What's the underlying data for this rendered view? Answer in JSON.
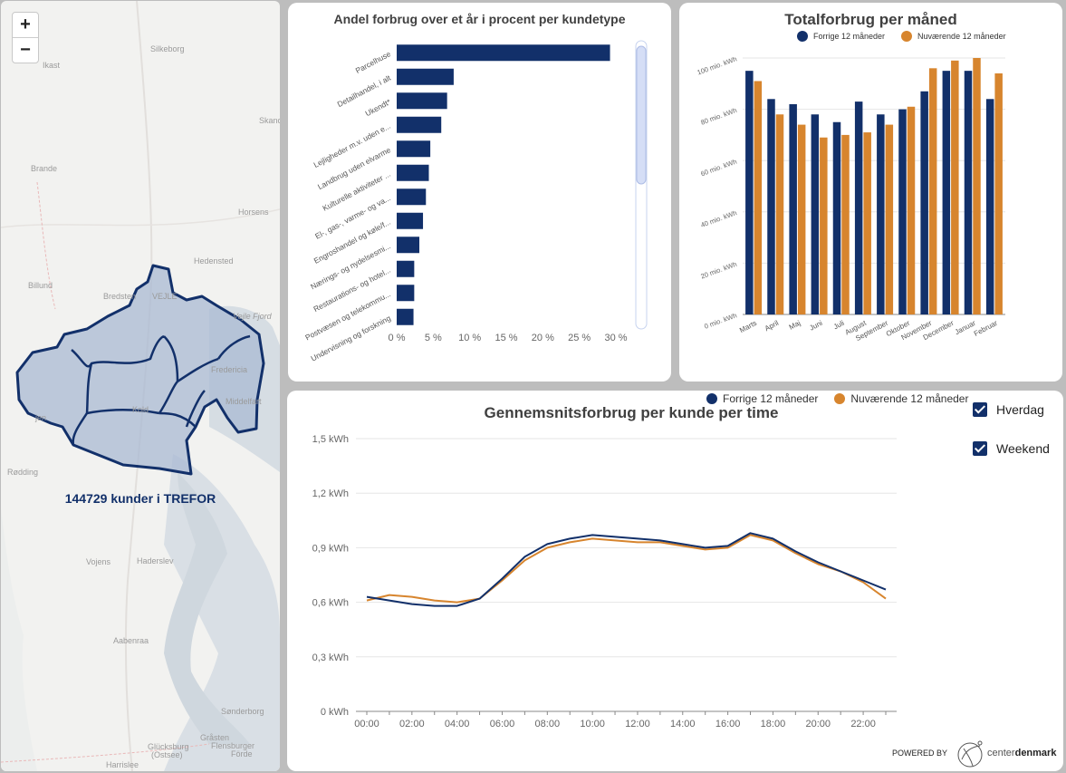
{
  "map": {
    "zoom_in": "+",
    "zoom_out": "−",
    "customers_text": "144729 kunder i TREFOR",
    "places": [
      "Silkeborg",
      "Ikast",
      "Skanderborg",
      "Brande",
      "Horsens",
      "Hedensted",
      "Billund",
      "Bredsten",
      "Vejle",
      "Vejle Fjord",
      "Fredericia",
      "Middelfart",
      "Kolding",
      "Vejen",
      "Rødding",
      "Vojens",
      "Haderslev",
      "Aabenraa",
      "Sønderborg",
      "Gråsten",
      "Flensburger Förde",
      "Glücksburg (Ostsee)",
      "Harrislee"
    ],
    "place_labels": {
      "silkeborg": "Silkeborg",
      "ikast": "Ikast",
      "skanderborg": "Skanc",
      "brande": "Brande",
      "horsens": "Horsens",
      "hedensted": "Hedensted",
      "billund": "Billund",
      "bredsten": "Bredsten",
      "vejle": "VEJLE",
      "vejle_fjord": "Vejle Fjord",
      "fredericia": "Fredericia",
      "middelfart": "Middelfart",
      "kolding": "Kold",
      "vejen": "jen",
      "rodding": "Rødding",
      "vojens": "Vojens",
      "haderslev": "Haderslev",
      "aabenraa": "Aabenraa",
      "sonderborg": "Sønderborg",
      "grasten": "Gråsten",
      "flensburger": "Flensburger",
      "forde": "Förde",
      "glucksburg": "Glücksburg",
      "ostsee": "(Ostsee)",
      "harrislee": "Harrislee"
    }
  },
  "bar_chart": {
    "title": "Andel forbrug over et år i procent per kundetype",
    "chart_data": {
      "type": "bar",
      "orientation": "horizontal",
      "title": "Andel forbrug over et år i procent per kundetype",
      "categories": [
        "Parcelhuse",
        "Detailhandel, i alt",
        "Ukendt*",
        "Lejligheder m.v. uden e...",
        "Landbrug uden elvarme",
        "Kulturelle aktiviteter ...",
        "El-, gas-, varme- og va...",
        "Engroshandel og køle/f...",
        "Nærings- og nydelsesmi...",
        "Restaurations- og hotel...",
        "Postvæsen og telekommu...",
        "Undervisning og forskning"
      ],
      "values": [
        29.2,
        7.8,
        6.9,
        6.1,
        4.6,
        4.4,
        4.0,
        3.6,
        3.1,
        2.4,
        2.4,
        2.3
      ],
      "xlim": [
        0,
        30
      ],
      "xticks": [
        "0 %",
        "5 %",
        "10 %",
        "15 %",
        "20 %",
        "25 %",
        "30 %"
      ],
      "color": "#12306a"
    }
  },
  "month_chart": {
    "title": "Totalforbrug per måned",
    "legend": [
      "Forrige 12 måneder",
      "Nuværende 12 måneder"
    ],
    "chart_data": {
      "type": "bar",
      "title": "Totalforbrug per måned",
      "categories": [
        "Marts",
        "April",
        "Maj",
        "Juni",
        "Juli",
        "August",
        "September",
        "Oktober",
        "November",
        "December",
        "Januar",
        "Februar"
      ],
      "series": [
        {
          "name": "Forrige 12 måneder",
          "color": "#12306a",
          "values": [
            95,
            84,
            82,
            78,
            75,
            83,
            78,
            80,
            87,
            95,
            95,
            84
          ]
        },
        {
          "name": "Nuværende 12 måneder",
          "color": "#d7852e",
          "values": [
            91,
            78,
            74,
            69,
            70,
            71,
            74,
            81,
            96,
            99,
            100,
            94
          ]
        }
      ],
      "ylim": [
        0,
        100
      ],
      "yticks": [
        "0 mio. kWh",
        "20 mio. kWh",
        "40 mio. kWh",
        "60 mio. kWh",
        "80 mio. kWh",
        "100 mio. kWh"
      ],
      "grid": true,
      "legend_position": "top"
    }
  },
  "line_chart": {
    "title": "Gennemsnitsforbrug per kunde per time",
    "legend": [
      "Forrige 12 måneder",
      "Nuværende 12 måneder"
    ],
    "checkboxes": [
      "Hverdag",
      "Weekend"
    ],
    "powered_by": "POWERED BY",
    "brand_a": "center",
    "brand_b": "denmark",
    "chart_data": {
      "type": "line",
      "title": "Gennemsnitsforbrug per kunde per time",
      "x": [
        "00:00",
        "01:00",
        "02:00",
        "03:00",
        "04:00",
        "05:00",
        "06:00",
        "07:00",
        "08:00",
        "09:00",
        "10:00",
        "11:00",
        "12:00",
        "13:00",
        "14:00",
        "15:00",
        "16:00",
        "17:00",
        "18:00",
        "19:00",
        "20:00",
        "21:00",
        "22:00",
        "23:00"
      ],
      "series": [
        {
          "name": "Forrige 12 måneder",
          "color": "#12306a",
          "values": [
            0.63,
            0.61,
            0.59,
            0.58,
            0.58,
            0.62,
            0.73,
            0.85,
            0.92,
            0.95,
            0.97,
            0.96,
            0.95,
            0.94,
            0.92,
            0.9,
            0.91,
            0.98,
            0.95,
            0.88,
            0.82,
            0.77,
            0.72,
            0.67
          ]
        },
        {
          "name": "Nuværende 12 måneder",
          "color": "#d7852e",
          "values": [
            0.61,
            0.64,
            0.63,
            0.61,
            0.6,
            0.62,
            0.72,
            0.83,
            0.9,
            0.93,
            0.95,
            0.94,
            0.93,
            0.93,
            0.91,
            0.89,
            0.9,
            0.97,
            0.94,
            0.87,
            0.81,
            0.77,
            0.71,
            0.62
          ]
        }
      ],
      "xticks": [
        "00:00",
        "02:00",
        "04:00",
        "06:00",
        "08:00",
        "10:00",
        "12:00",
        "14:00",
        "16:00",
        "18:00",
        "20:00",
        "22:00"
      ],
      "ylim": [
        0,
        1.5
      ],
      "yticks": [
        "0 kWh",
        "0,3 kWh",
        "0,6 kWh",
        "0,9 kWh",
        "1,2 kWh",
        "1,5 kWh"
      ],
      "grid": true,
      "legend_position": "top"
    }
  }
}
